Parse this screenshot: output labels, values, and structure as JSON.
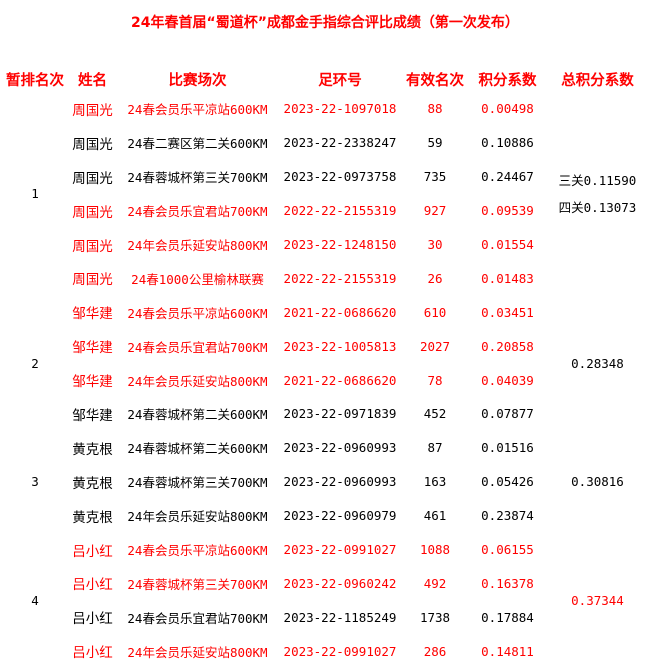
{
  "title": "24年春首届“蜀道杯”成都金手指综合评比成绩（第一次发布）",
  "headers": [
    "暂排名次",
    "姓名",
    "比赛场次",
    "足环号",
    "有效名次",
    "积分系数",
    "总积分系数"
  ],
  "colors": {
    "highlight": "#ff0000",
    "normal": "#000000"
  },
  "groups": [
    {
      "rank": "1",
      "total_lines": [
        "三关0.11590",
        "四关0.13073"
      ],
      "total_red": false,
      "rows": [
        {
          "name": "周国光",
          "event": "24春会员乐平凉站600KM",
          "ring": "2023-22-1097018",
          "place": "88",
          "coef": "0.00498",
          "red": true
        },
        {
          "name": "周国光",
          "event": "24春二赛区第二关600KM",
          "ring": "2023-22-2338247",
          "place": "59",
          "coef": "0.10886",
          "red": false
        },
        {
          "name": "周国光",
          "event": "24春蓉城杯第三关700KM",
          "ring": "2023-22-0973758",
          "place": "735",
          "coef": "0.24467",
          "red": false
        },
        {
          "name": "周国光",
          "event": "24春会员乐宜君站700KM",
          "ring": "2022-22-2155319",
          "place": "927",
          "coef": "0.09539",
          "red": true
        },
        {
          "name": "周国光",
          "event": "24年会员乐延安站800KM",
          "ring": "2023-22-1248150",
          "place": "30",
          "coef": "0.01554",
          "red": true
        },
        {
          "name": "周国光",
          "event": "24春1000公里榆林联赛",
          "ring": "2022-22-2155319",
          "place": "26",
          "coef": "0.01483",
          "red": true
        }
      ]
    },
    {
      "rank": "2",
      "total_lines": [
        "0.28348"
      ],
      "total_red": false,
      "rows": [
        {
          "name": "邹华建",
          "event": "24春会员乐平凉站600KM",
          "ring": "2021-22-0686620",
          "place": "610",
          "coef": "0.03451",
          "red": true
        },
        {
          "name": "邹华建",
          "event": "24春会员乐宜君站700KM",
          "ring": "2023-22-1005813",
          "place": "2027",
          "coef": "0.20858",
          "red": true
        },
        {
          "name": "邹华建",
          "event": "24年会员乐延安站800KM",
          "ring": "2021-22-0686620",
          "place": "78",
          "coef": "0.04039",
          "red": true
        },
        {
          "name": "邹华建",
          "event": "24春蓉城杯第二关600KM",
          "ring": "2023-22-0971839",
          "place": "452",
          "coef": "0.07877",
          "red": false
        }
      ]
    },
    {
      "rank": "3",
      "total_lines": [
        "0.30816"
      ],
      "total_red": false,
      "rows": [
        {
          "name": "黄克根",
          "event": "24春蓉城杯第二关600KM",
          "ring": "2023-22-0960993",
          "place": "87",
          "coef": "0.01516",
          "red": false
        },
        {
          "name": "黄克根",
          "event": "24春蓉城杯第三关700KM",
          "ring": "2023-22-0960993",
          "place": "163",
          "coef": "0.05426",
          "red": false
        },
        {
          "name": "黄克根",
          "event": "24年会员乐延安站800KM",
          "ring": "2023-22-0960979",
          "place": "461",
          "coef": "0.23874",
          "red": false
        }
      ]
    },
    {
      "rank": "4",
      "total_lines": [
        "0.37344"
      ],
      "total_red": true,
      "rows": [
        {
          "name": "吕小红",
          "event": "24春会员乐平凉站600KM",
          "ring": "2023-22-0991027",
          "place": "1088",
          "coef": "0.06155",
          "red": true
        },
        {
          "name": "吕小红",
          "event": "24春蓉城杯第三关700KM",
          "ring": "2023-22-0960242",
          "place": "492",
          "coef": "0.16378",
          "red": true
        },
        {
          "name": "吕小红",
          "event": "24春会员乐宜君站700KM",
          "ring": "2023-22-1185249",
          "place": "1738",
          "coef": "0.17884",
          "red": false
        },
        {
          "name": "吕小红",
          "event": "24年会员乐延安站800KM",
          "ring": "2023-22-0991027",
          "place": "286",
          "coef": "0.14811",
          "red": true
        }
      ]
    }
  ]
}
